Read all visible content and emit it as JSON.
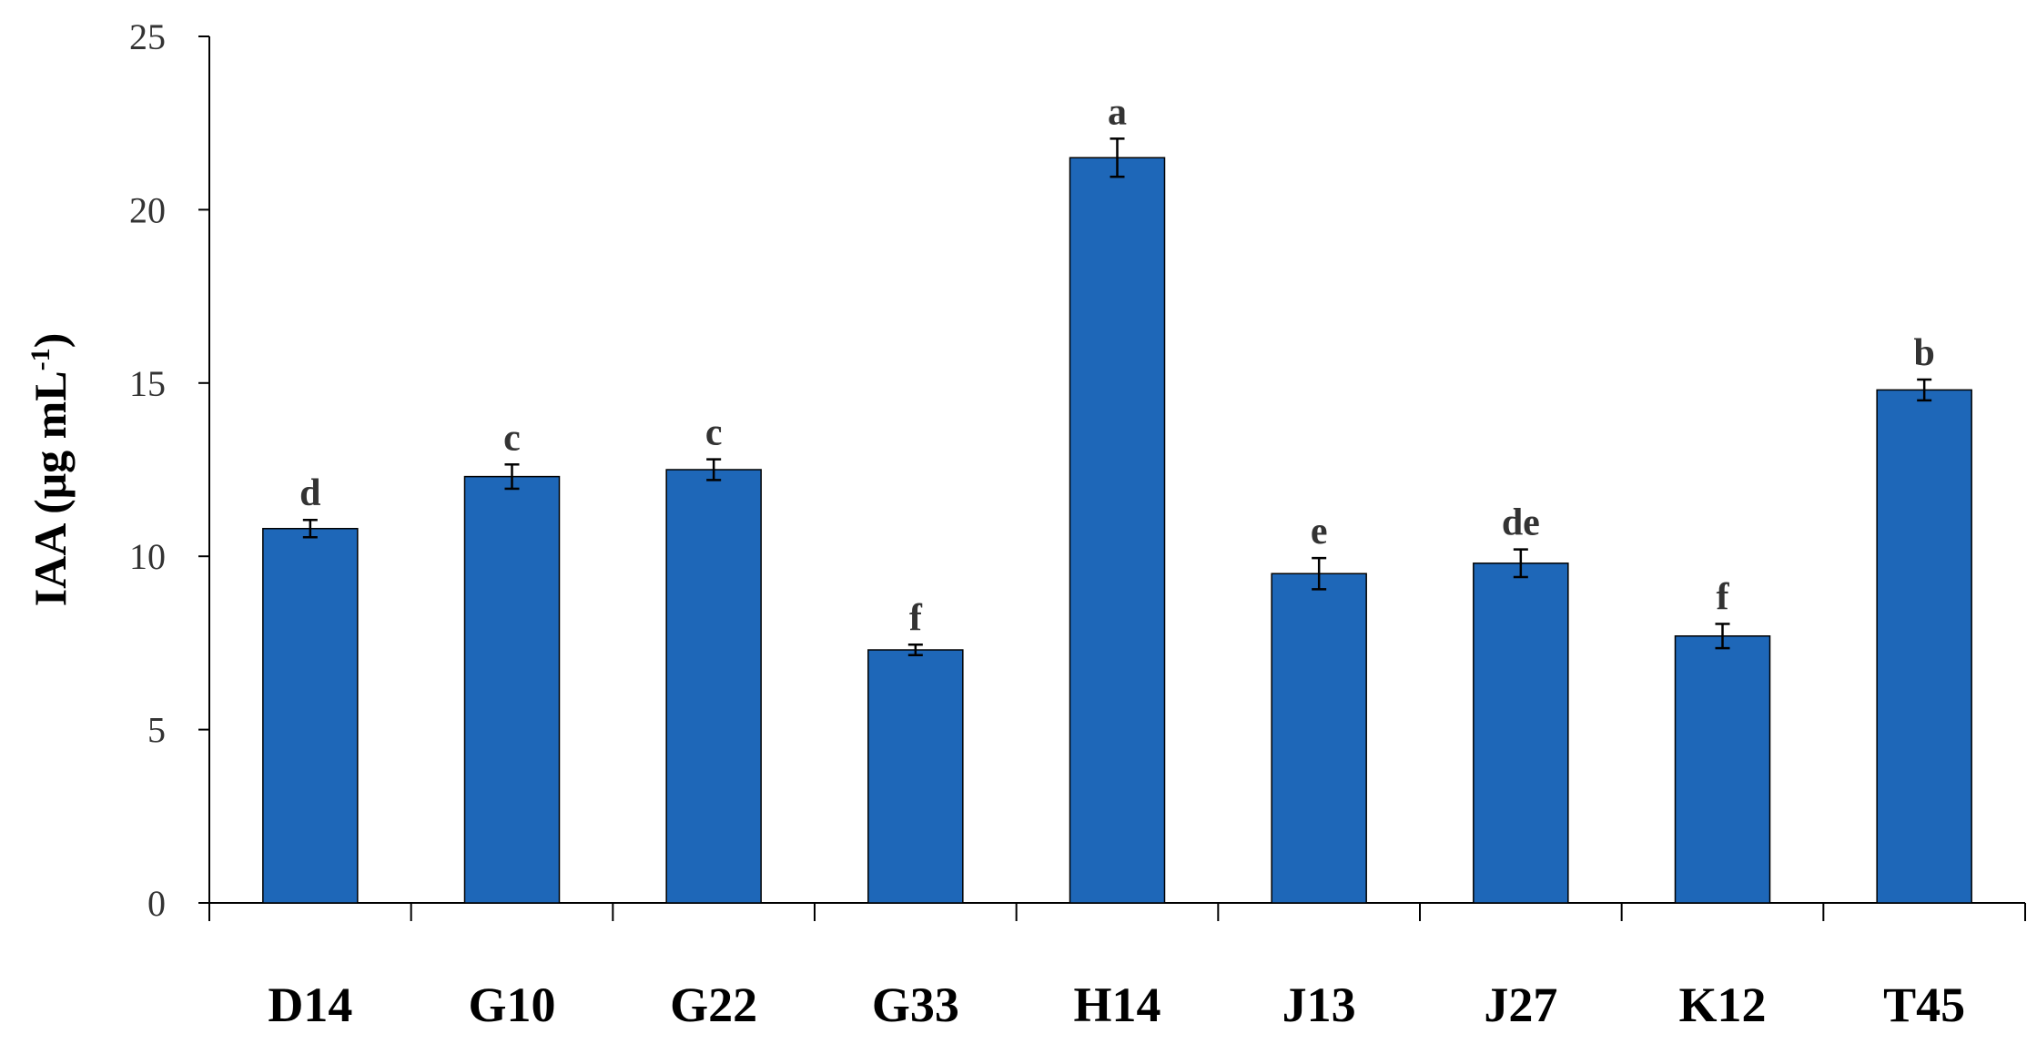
{
  "chart_data": {
    "type": "bar",
    "title": "",
    "xlabel": "",
    "ylabel": "IAA (μg mL",
    "ylabel_superscript": "-1",
    "ylabel_suffix": ")",
    "ylim": [
      0,
      25
    ],
    "yticks": [
      "0",
      "5",
      "10",
      "15",
      "20",
      "25"
    ],
    "grid": false,
    "bar_color": "#1E67B8",
    "categories": [
      "D14",
      "G10",
      "G22",
      "G33",
      "H14",
      "J13",
      "J27",
      "K12",
      "T45"
    ],
    "values": [
      10.8,
      12.3,
      12.5,
      7.3,
      21.5,
      9.5,
      9.8,
      7.7,
      14.8
    ],
    "errors": [
      0.25,
      0.35,
      0.3,
      0.15,
      0.55,
      0.45,
      0.4,
      0.35,
      0.3
    ],
    "significance_labels": [
      "d",
      "c",
      "c",
      "f",
      "a",
      "e",
      "de",
      "f",
      "b"
    ]
  }
}
